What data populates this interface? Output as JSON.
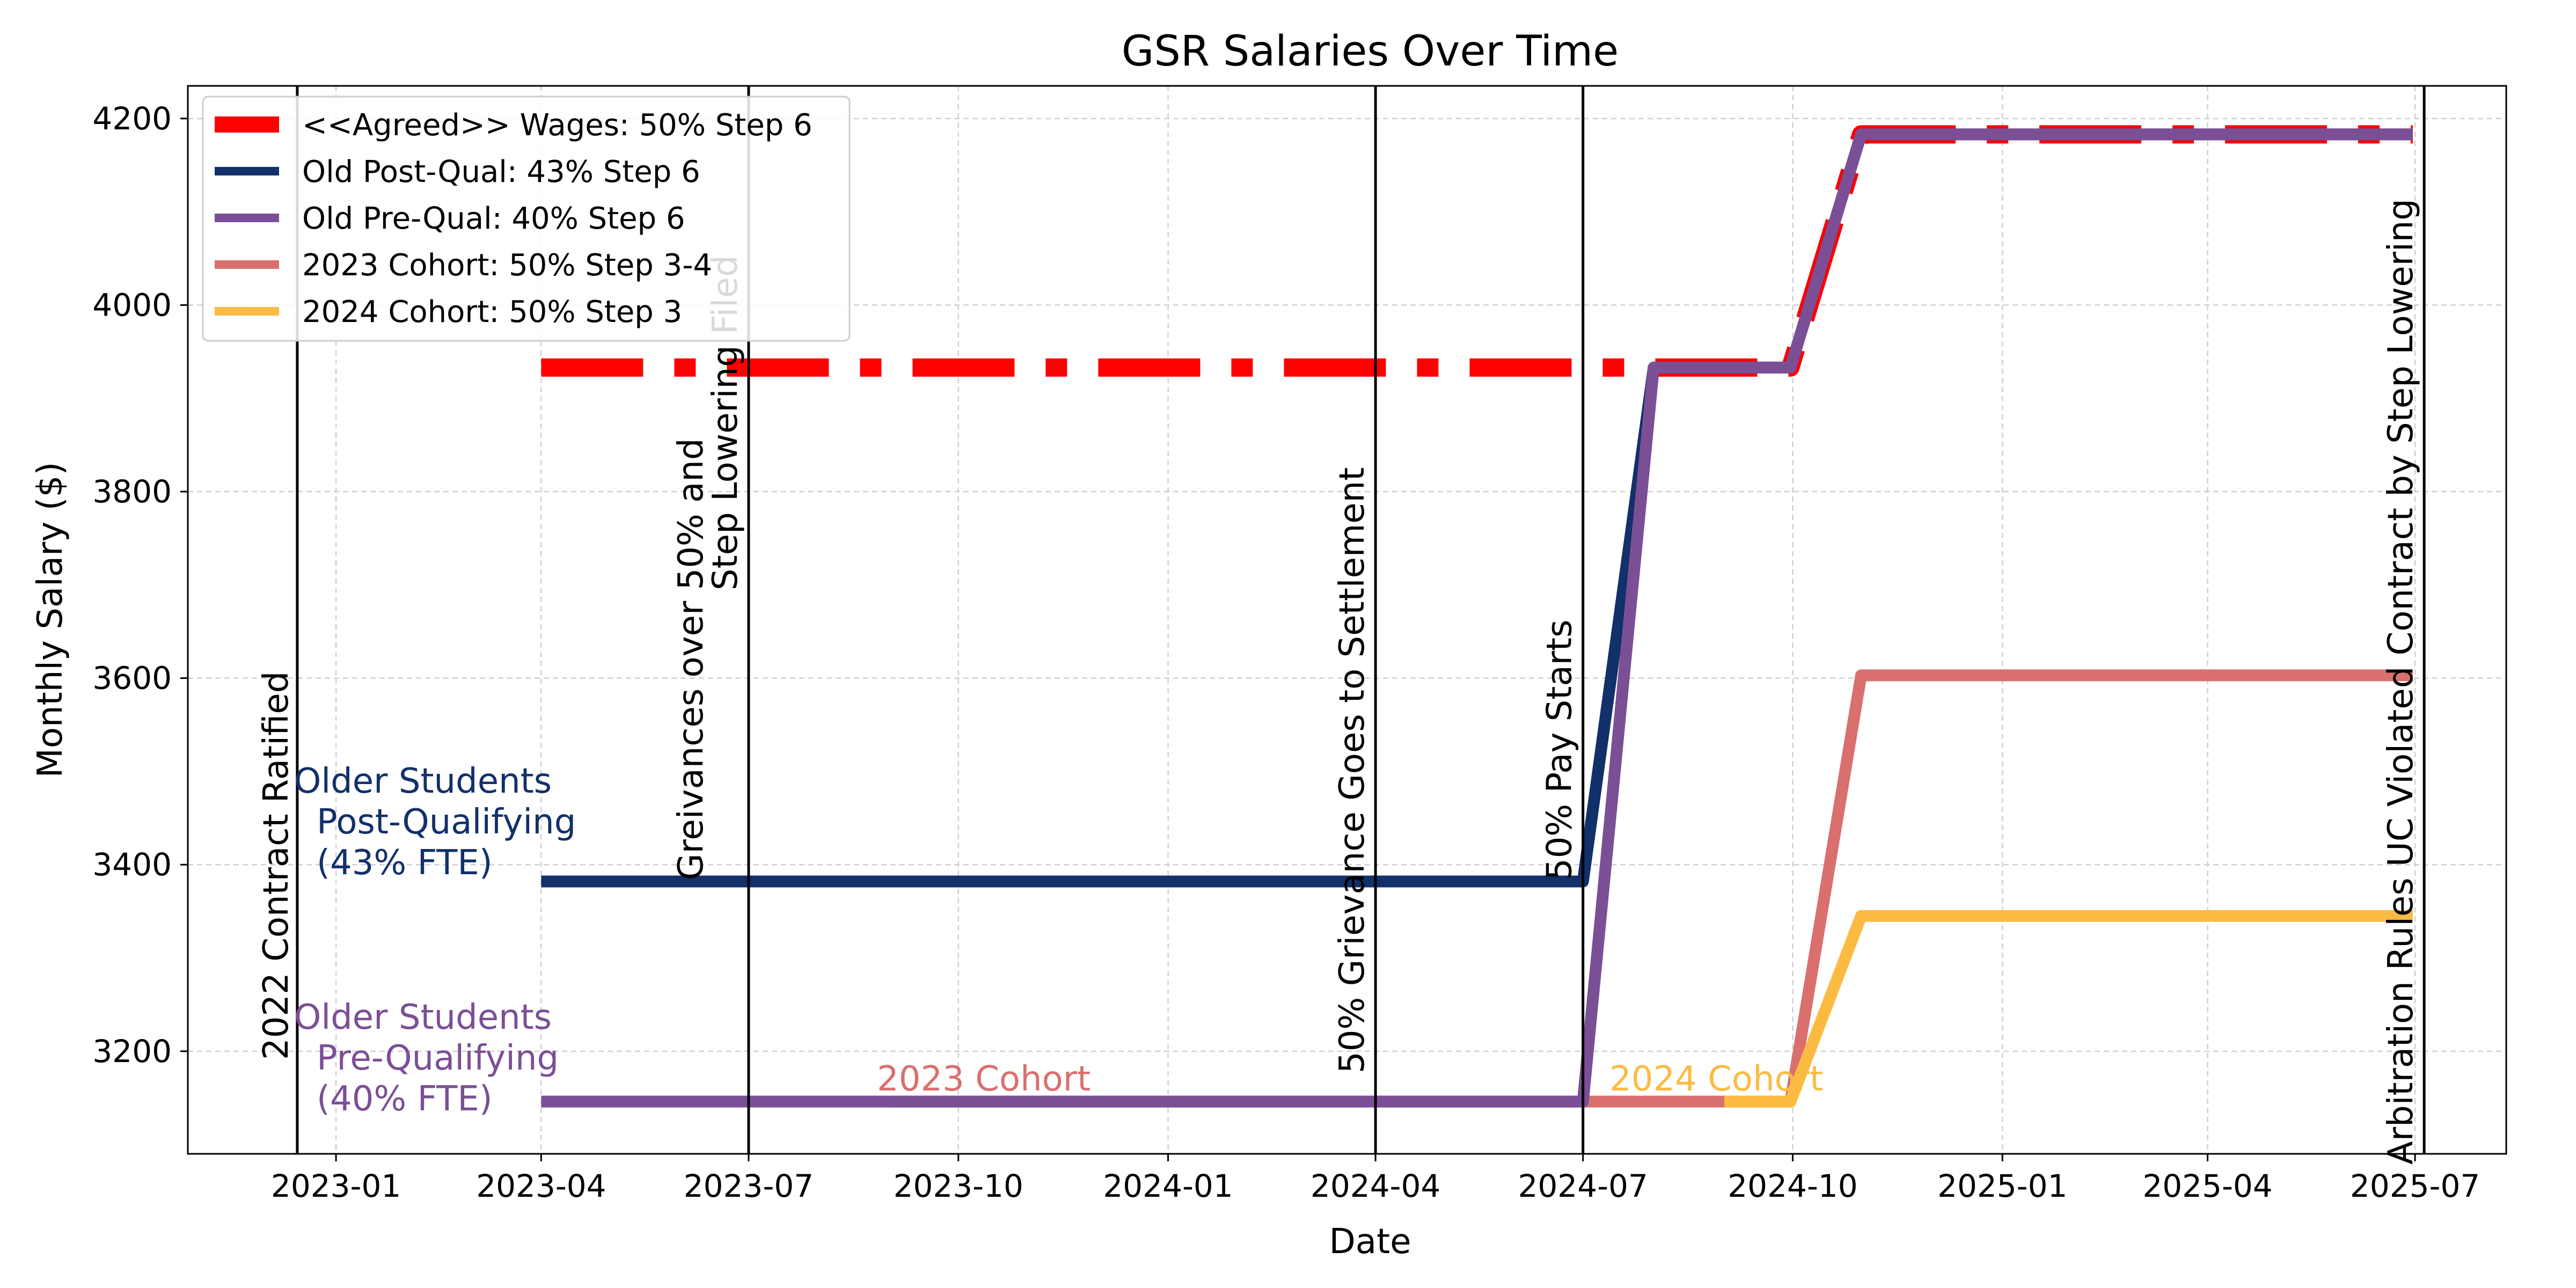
{
  "chart_data": {
    "type": "line",
    "title": "GSR Salaries Over Time",
    "xlabel": "Date",
    "ylabel": "Monthly Salary ($)",
    "x_axis_type": "date",
    "xlim": [
      "2022-10-28",
      "2025-08-10"
    ],
    "ylim": [
      3090,
      4235
    ],
    "grid": true,
    "grid_style": "dashed",
    "legend_position": "top-left",
    "x_ticks": [
      "2023-01",
      "2023-04",
      "2023-07",
      "2023-10",
      "2024-01",
      "2024-04",
      "2024-07",
      "2024-10",
      "2025-01",
      "2025-04",
      "2025-07"
    ],
    "y_ticks": [
      3200,
      3400,
      3600,
      3800,
      4000,
      4200
    ],
    "series": [
      {
        "name": "<<Agreed>> Wages: 50% Step 6",
        "color": "#ff0000",
        "style": "dashdot",
        "x": [
          "2023-04-01",
          "2024-09-30",
          "2024-10-31",
          "2025-06-30"
        ],
        "y": [
          3933,
          3933,
          4183,
          4183
        ]
      },
      {
        "name": "Old Post-Qual: 43% Step 6",
        "color": "#12306a",
        "style": "solid",
        "x": [
          "2023-04-01",
          "2024-07-01",
          "2024-08-01",
          "2024-09-30",
          "2024-10-31",
          "2025-06-30"
        ],
        "y": [
          3382,
          3382,
          3933,
          3933,
          4183,
          4183
        ]
      },
      {
        "name": "Old Pre-Qual: 40% Step 6",
        "color": "#7b4f96",
        "style": "solid",
        "x": [
          "2023-04-01",
          "2024-07-01",
          "2024-08-01",
          "2024-09-30",
          "2024-10-31",
          "2025-06-30"
        ],
        "y": [
          3146,
          3146,
          3933,
          3933,
          4183,
          4183
        ]
      },
      {
        "name": "2023 Cohort: 50% Step 3-4",
        "color": "#d9706e",
        "style": "solid",
        "x": [
          "2023-09-01",
          "2024-09-30",
          "2024-10-31",
          "2025-06-30"
        ],
        "y": [
          3146,
          3146,
          3603,
          3603
        ]
      },
      {
        "name": "2024 Cohort: 50% Step 3",
        "color": "#fbbb43",
        "style": "solid",
        "x": [
          "2024-09-01",
          "2024-09-30",
          "2024-10-31",
          "2025-06-30"
        ],
        "y": [
          3146,
          3146,
          3345,
          3345
        ]
      }
    ],
    "events": [
      {
        "date": "2022-12-15",
        "label": "2022 Contract Ratified",
        "align": "left"
      },
      {
        "date": "2023-07-01",
        "label": [
          "Greivances over 50% and",
          "Step Lowering Filed"
        ],
        "align": "right"
      },
      {
        "date": "2024-04-01",
        "label": "50% Grievance Goes to Settlement",
        "align": "right"
      },
      {
        "date": "2024-07-01",
        "label": "50% Pay Starts",
        "align": "right"
      },
      {
        "date": "2025-07-05",
        "label": "Arbitration Rules UC Violated Contract by Step Lowering",
        "align": "right"
      }
    ],
    "annotations": [
      {
        "id": "older-post-qual",
        "lines": [
          "Older Students",
          "Post-Qualifying",
          "(43% FTE)"
        ],
        "color": "#12306a"
      },
      {
        "id": "older-pre-qual",
        "lines": [
          "Older Students",
          "Pre-Qualifying",
          "(40% FTE)"
        ],
        "color": "#7b4f96"
      },
      {
        "id": "cohort-2023",
        "lines": [
          "2023 Cohort"
        ],
        "color": "#d9706e"
      },
      {
        "id": "cohort-2024",
        "lines": [
          "2024 Cohort"
        ],
        "color": "#fbbb43"
      }
    ]
  }
}
